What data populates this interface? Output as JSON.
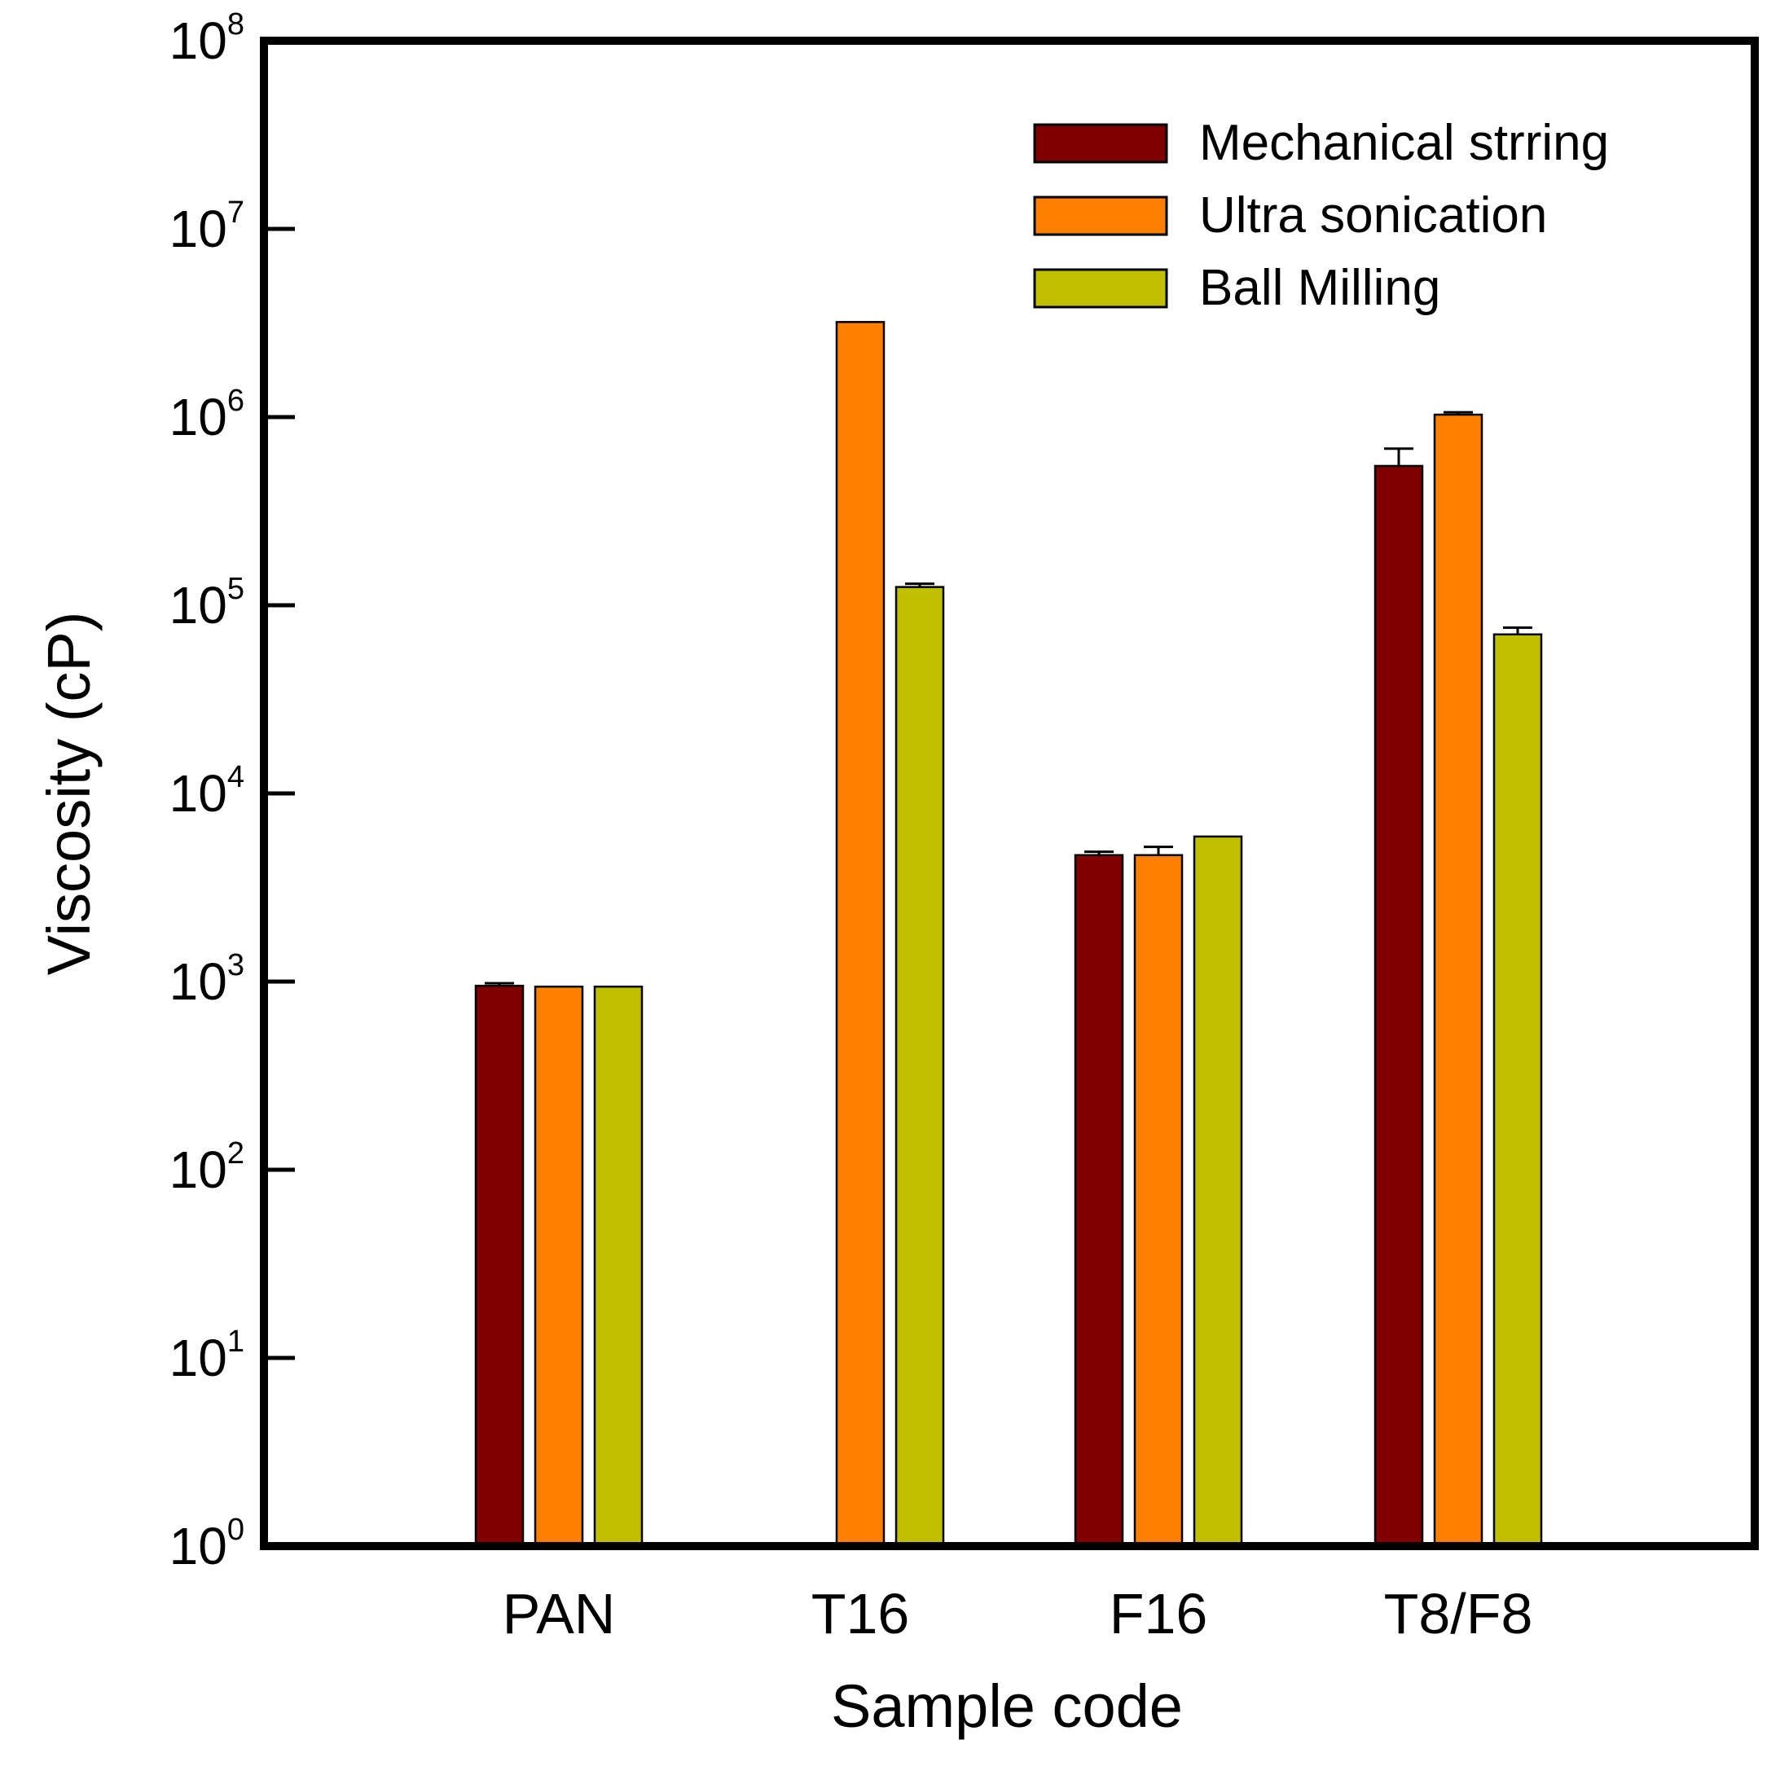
{
  "chart_data": {
    "type": "bar",
    "title": "",
    "xlabel": "Sample code",
    "ylabel": "Viscosity (cP)",
    "yscale": "log",
    "ylim": [
      1,
      100000000
    ],
    "yticks": [
      {
        "base": "10",
        "exp": "0",
        "value": 1
      },
      {
        "base": "10",
        "exp": "1",
        "value": 10
      },
      {
        "base": "10",
        "exp": "2",
        "value": 100
      },
      {
        "base": "10",
        "exp": "3",
        "value": 1000
      },
      {
        "base": "10",
        "exp": "4",
        "value": 10000
      },
      {
        "base": "10",
        "exp": "5",
        "value": 100000
      },
      {
        "base": "10",
        "exp": "6",
        "value": 1000000
      },
      {
        "base": "10",
        "exp": "7",
        "value": 10000000
      },
      {
        "base": "10",
        "exp": "8",
        "value": 100000000
      }
    ],
    "categories": [
      "PAN",
      "T16",
      "F16",
      "T8/F8"
    ],
    "series": [
      {
        "name": "Mechanical strring",
        "color": "#7f0000",
        "values": [
          950,
          null,
          4700,
          550000
        ],
        "errors": [
          30,
          null,
          200,
          130000
        ]
      },
      {
        "name": "Ultra sonication",
        "color": "#ff8000",
        "values": [
          940,
          3200000,
          4700,
          1030000
        ],
        "errors": [
          0,
          0,
          500,
          30000
        ]
      },
      {
        "name": "Ball Milling",
        "color": "#bfbf00",
        "values": [
          940,
          125000,
          5900,
          70000
        ],
        "errors": [
          0,
          5000,
          0,
          6000
        ]
      }
    ],
    "legend_position": "top-right",
    "grid": false
  }
}
